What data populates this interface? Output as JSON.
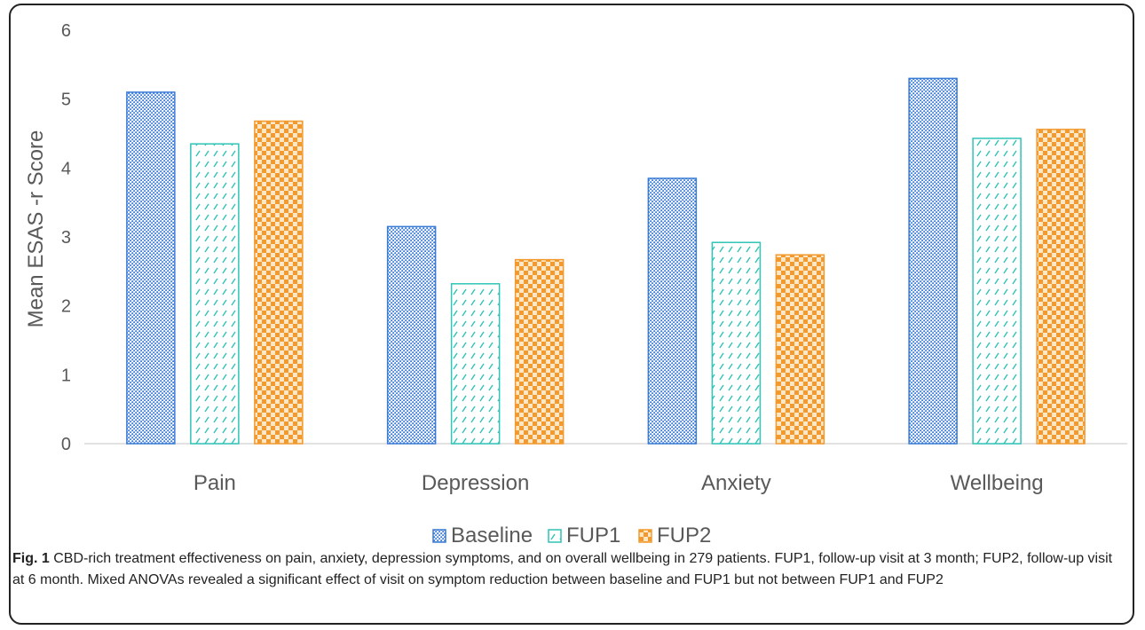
{
  "chart_data": {
    "type": "bar",
    "ylabel": "Mean ESAS -r Score",
    "ylim": [
      0,
      6
    ],
    "yticks": [
      0,
      1,
      2,
      3,
      4,
      5,
      6
    ],
    "categories": [
      "Pain",
      "Depression",
      "Anxiety",
      "Wellbeing"
    ],
    "series": [
      {
        "name": "Baseline",
        "values": [
          5.1,
          3.15,
          3.85,
          5.3
        ],
        "color": "#3a7bd5",
        "pattern": "dots"
      },
      {
        "name": "FUP1",
        "values": [
          4.35,
          2.32,
          2.92,
          4.43
        ],
        "color": "#2ec4b6",
        "pattern": "dashes"
      },
      {
        "name": "FUP2",
        "values": [
          4.68,
          2.67,
          2.74,
          4.56
        ],
        "color": "#f39a2e",
        "pattern": "checker"
      }
    ],
    "grid": false,
    "legend_position": "bottom"
  },
  "caption": {
    "label": "Fig. 1",
    "text": "CBD-rich treatment effectiveness on pain, anxiety, depression symptoms, and on overall wellbeing in 279 patients. FUP1, follow-up visit at 3 month; FUP2, follow-up visit at 6 month. Mixed ANOVAs revealed a significant effect of visit on symptom reduction between baseline and FUP1 but not between FUP1 and FUP2"
  }
}
